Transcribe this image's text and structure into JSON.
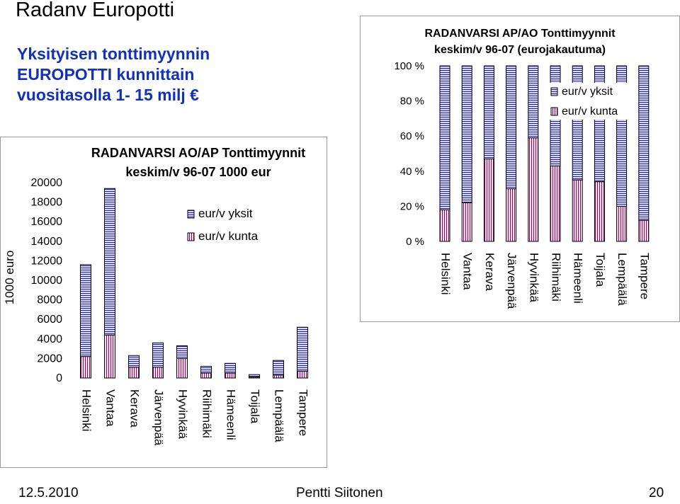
{
  "slide": {
    "title": "Radanv Europotti",
    "subtitle": "Yksityisen tonttimyynnin EUROPOTTI kunnittain vuositasolla  1- 15 milj €"
  },
  "footer": {
    "date": "12.5.2010",
    "author": "Pentti Siitonen",
    "page": "20"
  },
  "colors": {
    "series1_fill": "#d8d8f8",
    "series1_stripe": "#2020a0",
    "series2_fill": "#f4dcee",
    "series2_stripe": "#7a1050",
    "subtitle": "#1030c0"
  },
  "chart_data": [
    {
      "type": "bar",
      "stacked": true,
      "title": "RADANVARSI AO/AP Tonttimyynnit keskim/v 96-07  1000 eur",
      "title_lines": [
        "RADANVARSI AO/AP Tonttimyynnit",
        "keskim/v 96-07  1000 eur"
      ],
      "ylabel": "1000 euro",
      "ylim": [
        0,
        20000
      ],
      "yticks": [
        "0",
        "2000",
        "4000",
        "6000",
        "8000",
        "10000",
        "12000",
        "14000",
        "16000",
        "18000",
        "20000"
      ],
      "ytick_values": [
        0,
        2000,
        4000,
        6000,
        8000,
        10000,
        12000,
        14000,
        16000,
        18000,
        20000
      ],
      "categories": [
        "Helsinki",
        "Vantaa",
        "Kerava",
        "Järvenpää",
        "Hyvinkää",
        "Riihimäki",
        "Hämeenli",
        "Toijala",
        "Lempäälä",
        "Tampere"
      ],
      "series": [
        {
          "name": "eur/v kunta",
          "values": [
            2200,
            4400,
            1100,
            1100,
            2000,
            500,
            500,
            100,
            300,
            700
          ]
        },
        {
          "name": "eur/v yksit",
          "values": [
            9400,
            15000,
            1200,
            2500,
            1300,
            700,
            1000,
            250,
            1500,
            4500
          ]
        }
      ],
      "legend_order": [
        "eur/v yksit",
        "eur/v kunta"
      ],
      "legend": "upper-middle",
      "grid": false
    },
    {
      "type": "bar",
      "stacked": true,
      "percent": true,
      "title": "RADANVARSI AP/AO Tonttimyynnit keskim/v 96-07 (eurojakautuma)",
      "title_lines": [
        "RADANVARSI AP/AO Tonttimyynnit",
        "keskim/v 96-07 (eurojakautuma)"
      ],
      "ylim": [
        0,
        100
      ],
      "yticks": [
        "0 %",
        "20 %",
        "40 %",
        "60 %",
        "80 %",
        "100 %"
      ],
      "ytick_values": [
        0,
        20,
        40,
        60,
        80,
        100
      ],
      "categories": [
        "Helsinki",
        "Vantaa",
        "Kerava",
        "Järvenpää",
        "Hyvinkää",
        "Riihimäki",
        "Hämeenli",
        "Toijala",
        "Lempäälä",
        "Tampere"
      ],
      "series": [
        {
          "name": "eur/v kunta",
          "values": [
            18,
            22,
            47,
            30,
            59,
            43,
            35,
            34,
            20,
            12
          ]
        },
        {
          "name": "eur/v yksit",
          "values": [
            82,
            78,
            53,
            70,
            41,
            57,
            65,
            66,
            80,
            88
          ]
        }
      ],
      "legend_order": [
        "eur/v yksit",
        "eur/v kunta"
      ],
      "legend": "top-right",
      "grid": false
    }
  ]
}
